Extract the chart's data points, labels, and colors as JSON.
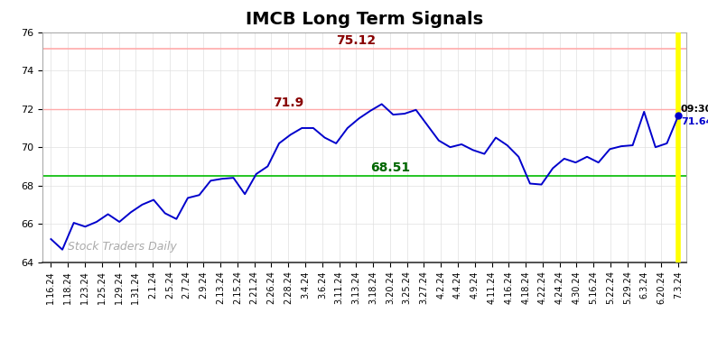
{
  "title": "IMCB Long Term Signals",
  "watermark": "Stock Traders Daily",
  "red_line": 75.12,
  "green_line": 68.51,
  "pink_band": 72.0,
  "last_value": 71.64,
  "ylim": [
    64,
    76
  ],
  "red_annotation": "75.12",
  "green_annotation": "68.51",
  "peak_annotation": "71.9",
  "x_labels": [
    "1.16.24",
    "1.18.24",
    "1.23.24",
    "1.25.24",
    "1.29.24",
    "1.31.24",
    "2.1.24",
    "2.5.24",
    "2.7.24",
    "2.9.24",
    "2.13.24",
    "2.15.24",
    "2.21.24",
    "2.26.24",
    "2.28.24",
    "3.4.24",
    "3.6.24",
    "3.11.24",
    "3.13.24",
    "3.18.24",
    "3.20.24",
    "3.25.24",
    "3.27.24",
    "4.2.24",
    "4.4.24",
    "4.9.24",
    "4.11.24",
    "4.16.24",
    "4.18.24",
    "4.22.24",
    "4.24.24",
    "4.30.24",
    "5.16.24",
    "5.22.24",
    "5.29.24",
    "6.3.24",
    "6.20.24",
    "7.3.24"
  ],
  "y_values": [
    65.2,
    64.65,
    66.05,
    65.85,
    66.1,
    66.5,
    66.1,
    66.6,
    67.0,
    67.25,
    66.55,
    66.25,
    67.35,
    67.5,
    68.25,
    68.35,
    68.4,
    67.55,
    68.6,
    69.0,
    70.2,
    70.65,
    71.0,
    71.0,
    70.5,
    70.2,
    71.0,
    71.5,
    71.9,
    72.25,
    71.7,
    71.75,
    71.95,
    71.15,
    70.35,
    70.0,
    70.15,
    69.85,
    69.65,
    70.5,
    70.1,
    69.5,
    68.1,
    68.05,
    68.9,
    69.4,
    69.2,
    69.5,
    69.2,
    69.9,
    70.05,
    70.1,
    71.85,
    70.0,
    70.2,
    71.64
  ],
  "title_fontsize": 14,
  "tick_fontsize": 7,
  "annotation_fontsize": 10,
  "bg_color": "#ffffff",
  "line_color": "#0000cc",
  "red_line_color": "#ffaaaa",
  "green_line_color": "#00bb00",
  "yellow_line_color": "#ffff00",
  "annotation_red_color": "#880000",
  "annotation_green_color": "#006600",
  "grid_color": "#e0e0e0",
  "watermark_color": "#aaaaaa"
}
